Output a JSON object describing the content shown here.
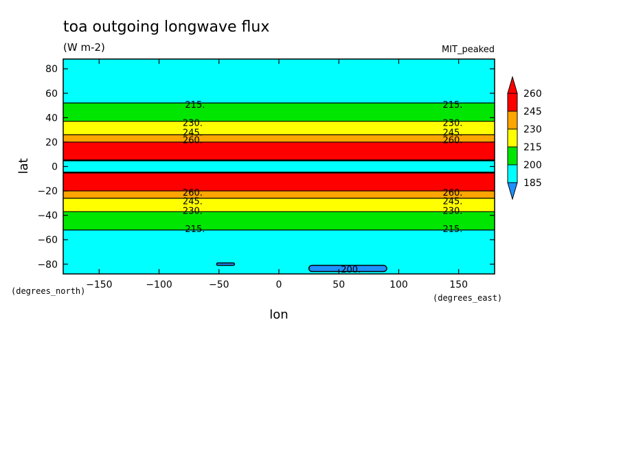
{
  "chart_data": {
    "type": "heatmap",
    "title": "toa outgoing longwave flux",
    "units": "(W m-2)",
    "model_label": "MIT_peaked",
    "xlabel": "lon",
    "ylabel": "lat",
    "x_units": "(degrees_east)",
    "y_units": "(degrees_north)",
    "xlim": [
      -180,
      180
    ],
    "ylim": [
      -88,
      88
    ],
    "x_ticks": [
      -150,
      -100,
      -50,
      0,
      50,
      100,
      150
    ],
    "y_ticks": [
      -80,
      -60,
      -40,
      -20,
      0,
      20,
      40,
      60,
      80
    ],
    "colorbar": {
      "levels": [
        185,
        200,
        215,
        230,
        245,
        260
      ],
      "colors": [
        "#1e90ff",
        "#00ffff",
        "#00e600",
        "#ffff00",
        "#ffa500",
        "#ff0000"
      ],
      "under_color": "#1e90ff",
      "over_color": "#ff0000",
      "extend": "both"
    },
    "zonal_bands": [
      {
        "lat_from": 88,
        "lat_to": 52,
        "value_class": 200
      },
      {
        "lat_from": 52,
        "lat_to": 37,
        "value_class": 215
      },
      {
        "lat_from": 37,
        "lat_to": 26,
        "value_class": 230
      },
      {
        "lat_from": 26,
        "lat_to": 20,
        "value_class": 245
      },
      {
        "lat_from": 20,
        "lat_to": 5,
        "value_class": 260
      },
      {
        "lat_from": 5,
        "lat_to": -5,
        "value_class": 200
      },
      {
        "lat_from": -5,
        "lat_to": -20,
        "value_class": 260
      },
      {
        "lat_from": -20,
        "lat_to": -26,
        "value_class": 245
      },
      {
        "lat_from": -26,
        "lat_to": -37,
        "value_class": 230
      },
      {
        "lat_from": -37,
        "lat_to": -52,
        "value_class": 215
      },
      {
        "lat_from": -52,
        "lat_to": -88,
        "value_class": 200
      }
    ],
    "patches": [
      {
        "lon_from": 25,
        "lon_to": 90,
        "lat_from": -81,
        "lat_to": -86,
        "value_class": 185
      },
      {
        "lon_from": -52,
        "lon_to": -37,
        "lat_from": -79,
        "lat_to": -81,
        "value_class": 185
      }
    ],
    "contour_labels": [
      {
        "text": "215.",
        "lon": -70,
        "lat": 51
      },
      {
        "text": "215.",
        "lon": 145,
        "lat": 51
      },
      {
        "text": "230.",
        "lon": -72,
        "lat": 36
      },
      {
        "text": "230.",
        "lon": 145,
        "lat": 36
      },
      {
        "text": "245.",
        "lon": -72,
        "lat": 28
      },
      {
        "text": "245.",
        "lon": 145,
        "lat": 28
      },
      {
        "text": "260.",
        "lon": -72,
        "lat": 22
      },
      {
        "text": "260.",
        "lon": 145,
        "lat": 22
      },
      {
        "text": "260.",
        "lon": -72,
        "lat": -21
      },
      {
        "text": "260.",
        "lon": 145,
        "lat": -21
      },
      {
        "text": "245.",
        "lon": -72,
        "lat": -28
      },
      {
        "text": "245.",
        "lon": 145,
        "lat": -28
      },
      {
        "text": "230.",
        "lon": -72,
        "lat": -36
      },
      {
        "text": "230.",
        "lon": 145,
        "lat": -36
      },
      {
        "text": "215.",
        "lon": -70,
        "lat": -51
      },
      {
        "text": "215.",
        "lon": 145,
        "lat": -51
      },
      {
        "text": "200.",
        "lon": 60,
        "lat": -84
      }
    ]
  }
}
